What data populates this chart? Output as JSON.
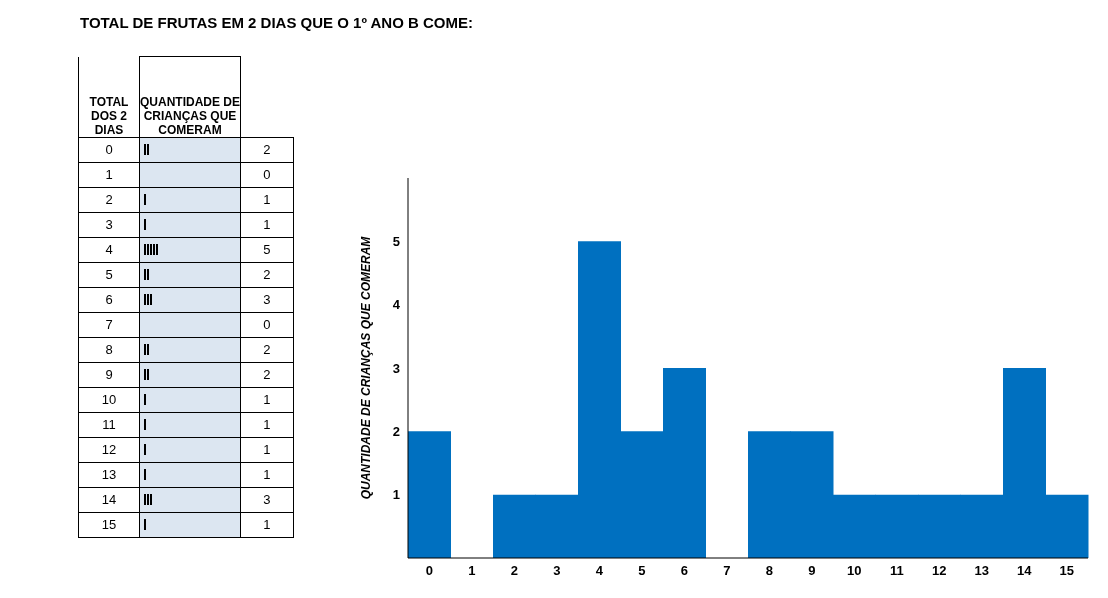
{
  "chart_data": {
    "type": "bar",
    "title": "TOTAL DE FRUTAS EM 2 DIAS QUE O 1º ANO B COME:",
    "ylabel": "QUANTIDADE  DE CRIANÇAS QUE COMERAM",
    "annotations": [
      "TOTAL DOS 2 DIAS",
      "QUANTIDADE DE CRIANÇAS QUE COMERAM"
    ],
    "categories": [
      "0",
      "1",
      "2",
      "3",
      "4",
      "5",
      "6",
      "7",
      "8",
      "9",
      "10",
      "11",
      "12",
      "13",
      "14",
      "15"
    ],
    "values": [
      2,
      0,
      1,
      1,
      5,
      2,
      3,
      0,
      2,
      2,
      1,
      1,
      1,
      1,
      3,
      1
    ],
    "color": "#0070c0",
    "ylim": [
      0,
      6
    ],
    "yticks": [
      1,
      2,
      3,
      4,
      5
    ]
  }
}
